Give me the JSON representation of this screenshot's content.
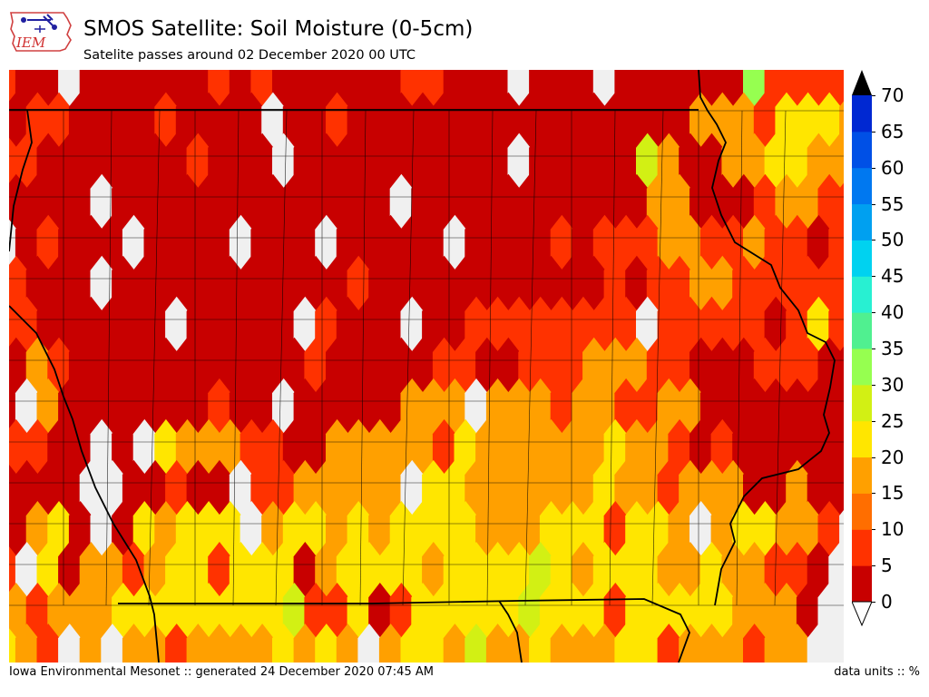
{
  "header": {
    "logo_text": "IEM",
    "title": "SMOS Satellite: Soil Moisture (0-5cm)",
    "subtitle": "Satelite passes around 02 December 2020 00 UTC"
  },
  "colorbar": {
    "ticks": [
      "70",
      "65",
      "60",
      "55",
      "50",
      "45",
      "40",
      "35",
      "30",
      "25",
      "20",
      "15",
      "10",
      "5",
      "0"
    ],
    "bins": [
      {
        "min": 0,
        "max": 5,
        "color": "#c80000"
      },
      {
        "min": 5,
        "max": 10,
        "color": "#ff3200"
      },
      {
        "min": 10,
        "max": 15,
        "color": "#ff6e00"
      },
      {
        "min": 15,
        "max": 20,
        "color": "#ffa000"
      },
      {
        "min": 20,
        "max": 25,
        "color": "#ffe600"
      },
      {
        "min": 25,
        "max": 30,
        "color": "#d2f014"
      },
      {
        "min": 30,
        "max": 35,
        "color": "#96ff50"
      },
      {
        "min": 35,
        "max": 40,
        "color": "#50f090"
      },
      {
        "min": 40,
        "max": 45,
        "color": "#28f0d2"
      },
      {
        "min": 45,
        "max": 50,
        "color": "#00d2f0"
      },
      {
        "min": 50,
        "max": 55,
        "color": "#00a0f0"
      },
      {
        "min": 55,
        "max": 60,
        "color": "#0078f0"
      },
      {
        "min": 60,
        "max": 65,
        "color": "#0050e6"
      },
      {
        "min": 65,
        "max": 70,
        "color": "#0028d2"
      }
    ],
    "over_color": "#000000",
    "under_color": "#ffffff",
    "missing_color": "#f0f0f0"
  },
  "map": {
    "region": "Iowa",
    "grid_note": "hexagonal SMOS cells, rows top-to-bottom, value = soil moisture %, null = no data",
    "cells": [
      [
        8,
        3,
        3,
        null,
        3,
        3,
        3,
        1,
        1,
        3,
        8,
        1,
        8,
        1,
        1,
        3,
        3,
        1,
        3,
        8,
        8,
        3,
        1,
        1,
        null,
        1,
        1,
        1,
        null,
        1,
        1,
        3,
        1,
        3,
        3,
        30,
        8,
        8,
        8,
        8
      ],
      [
        3,
        8,
        8,
        3,
        1,
        1,
        3,
        8,
        3,
        3,
        1,
        1,
        null,
        3,
        3,
        8,
        1,
        1,
        1,
        3,
        1,
        1,
        1,
        1,
        1,
        3,
        1,
        1,
        3,
        1,
        3,
        3,
        18,
        18,
        18,
        8,
        22,
        22,
        22,
        15
      ],
      [
        8,
        8,
        1,
        3,
        3,
        1,
        1,
        3,
        3,
        8,
        1,
        3,
        3,
        null,
        1,
        3,
        3,
        1,
        3,
        3,
        1,
        1,
        1,
        3,
        null,
        1,
        1,
        3,
        3,
        3,
        27,
        18,
        1,
        3,
        15,
        18,
        22,
        22,
        15,
        15
      ],
      [
        3,
        3,
        1,
        1,
        null,
        3,
        1,
        1,
        3,
        1,
        1,
        1,
        1,
        3,
        1,
        3,
        3,
        3,
        null,
        1,
        1,
        1,
        1,
        1,
        3,
        1,
        3,
        3,
        3,
        3,
        18,
        18,
        3,
        3,
        1,
        8,
        15,
        15,
        8,
        8
      ],
      [
        null,
        3,
        8,
        3,
        3,
        1,
        null,
        3,
        3,
        3,
        1,
        null,
        1,
        1,
        3,
        null,
        1,
        3,
        3,
        3,
        1,
        null,
        3,
        3,
        3,
        3,
        8,
        3,
        8,
        8,
        8,
        18,
        18,
        8,
        8,
        15,
        8,
        8,
        3,
        8
      ],
      [
        8,
        3,
        3,
        1,
        null,
        3,
        3,
        1,
        1,
        1,
        3,
        3,
        3,
        1,
        1,
        1,
        8,
        3,
        3,
        3,
        1,
        1,
        3,
        1,
        3,
        3,
        3,
        3,
        8,
        3,
        8,
        8,
        15,
        15,
        8,
        8,
        8,
        8,
        8,
        8
      ],
      [
        8,
        8,
        3,
        3,
        1,
        1,
        1,
        1,
        null,
        3,
        1,
        3,
        3,
        1,
        null,
        8,
        3,
        1,
        1,
        null,
        3,
        3,
        8,
        8,
        8,
        8,
        8,
        8,
        8,
        8,
        null,
        8,
        8,
        8,
        8,
        8,
        3,
        8,
        22,
        8
      ],
      [
        3,
        15,
        8,
        3,
        3,
        1,
        1,
        3,
        3,
        1,
        1,
        1,
        3,
        3,
        8,
        3,
        1,
        1,
        1,
        3,
        8,
        8,
        3,
        3,
        8,
        8,
        8,
        15,
        15,
        15,
        8,
        8,
        3,
        3,
        3,
        8,
        8,
        8,
        3,
        3
      ],
      [
        3,
        null,
        15,
        3,
        3,
        3,
        1,
        3,
        3,
        3,
        8,
        3,
        3,
        null,
        3,
        3,
        3,
        3,
        3,
        15,
        15,
        15,
        null,
        15,
        15,
        15,
        8,
        15,
        18,
        8,
        8,
        15,
        15,
        1,
        1,
        1,
        3,
        3,
        1,
        1
      ],
      [
        8,
        8,
        1,
        1,
        null,
        1,
        null,
        22,
        15,
        15,
        18,
        8,
        8,
        3,
        3,
        18,
        18,
        18,
        15,
        15,
        8,
        22,
        18,
        15,
        15,
        15,
        15,
        15,
        22,
        15,
        15,
        8,
        3,
        8,
        1,
        1,
        1,
        3,
        1,
        1
      ],
      [
        3,
        3,
        3,
        1,
        null,
        null,
        3,
        3,
        8,
        3,
        1,
        null,
        8,
        8,
        15,
        15,
        15,
        15,
        15,
        null,
        22,
        22,
        15,
        15,
        15,
        15,
        15,
        15,
        22,
        15,
        18,
        8,
        15,
        15,
        18,
        3,
        3,
        18,
        1,
        1
      ],
      [
        3,
        18,
        22,
        3,
        null,
        3,
        22,
        18,
        22,
        22,
        22,
        null,
        15,
        22,
        22,
        15,
        22,
        18,
        22,
        22,
        22,
        22,
        18,
        15,
        18,
        22,
        22,
        22,
        8,
        22,
        22,
        15,
        null,
        15,
        22,
        22,
        15,
        15,
        8,
        null
      ],
      [
        8,
        null,
        22,
        3,
        15,
        15,
        8,
        15,
        22,
        22,
        8,
        22,
        22,
        22,
        3,
        15,
        22,
        22,
        22,
        22,
        15,
        22,
        22,
        22,
        22,
        27,
        22,
        15,
        22,
        22,
        22,
        15,
        15,
        22,
        15,
        15,
        8,
        8,
        3,
        null
      ],
      [
        15,
        8,
        15,
        15,
        15,
        22,
        22,
        22,
        22,
        22,
        22,
        22,
        22,
        27,
        8,
        8,
        22,
        3,
        8,
        22,
        22,
        22,
        22,
        22,
        27,
        22,
        22,
        22,
        8,
        22,
        22,
        22,
        22,
        22,
        15,
        15,
        15,
        3,
        null,
        null
      ],
      [
        22,
        15,
        8,
        null,
        15,
        null,
        15,
        15,
        8,
        15,
        15,
        15,
        15,
        22,
        15,
        22,
        15,
        null,
        15,
        22,
        22,
        15,
        27,
        15,
        15,
        22,
        18,
        15,
        15,
        22,
        22,
        8,
        15,
        15,
        15,
        8,
        15,
        15,
        null,
        null
      ]
    ]
  },
  "footer": {
    "left": "Iowa Environmental Mesonet :: generated 24 December 2020 07:45 AM",
    "right": "data units :: %"
  }
}
